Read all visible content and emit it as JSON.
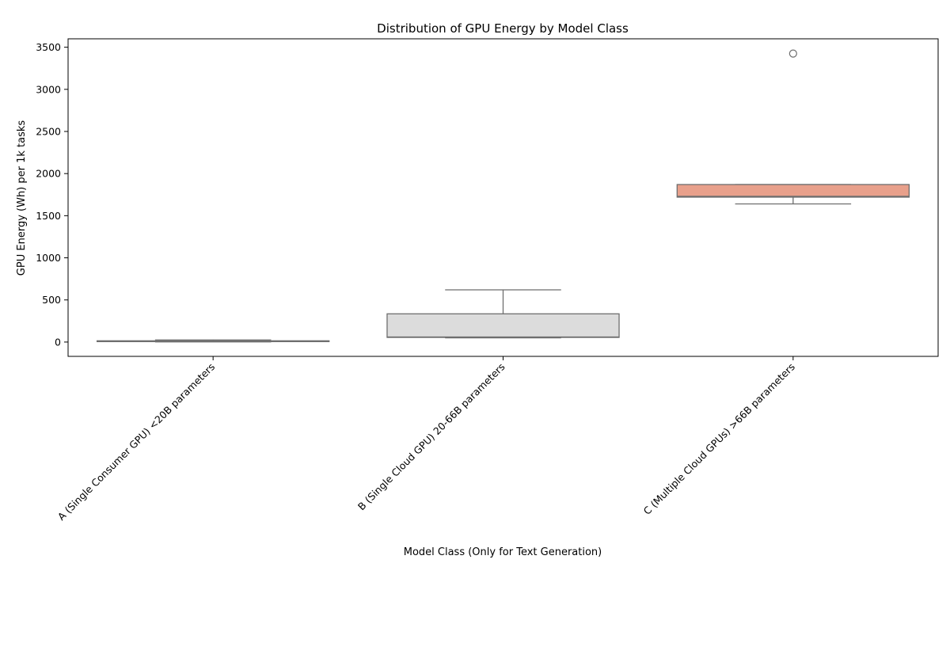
{
  "chart_data": {
    "type": "box",
    "title": "Distribution of GPU Energy by Model Class",
    "xlabel": "Model Class (Only for Text Generation)",
    "ylabel": "GPU Energy (Wh) per 1k tasks",
    "ylim": [
      -170,
      3600
    ],
    "yticks": [
      0,
      500,
      1000,
      1500,
      2000,
      2500,
      3000,
      3500
    ],
    "grid": false,
    "categories": [
      "A (Single Consumer GPU) <20B parameters",
      "B (Single Cloud GPU) 20-66B parameters",
      "C (Multiple Cloud GPUs) >66B parameters"
    ],
    "boxes": [
      {
        "category": "A (Single Consumer GPU) <20B parameters",
        "whisker_low": 2,
        "q1": 5,
        "median": 10,
        "q3": 15,
        "whisker_high": 25,
        "outliers": [],
        "color": "#ffffff"
      },
      {
        "category": "B (Single Cloud GPU) 20-66B parameters",
        "whisker_low": 50,
        "q1": 55,
        "median": 60,
        "q3": 335,
        "whisker_high": 620,
        "outliers": [],
        "color": "#dcdcdc"
      },
      {
        "category": "C (Multiple Cloud GPUs) >66B parameters",
        "whisker_low": 1640,
        "q1": 1720,
        "median": 1730,
        "q3": 1870,
        "whisker_high": 1870,
        "outliers": [
          3425
        ],
        "color": "#e8a08b"
      }
    ]
  }
}
